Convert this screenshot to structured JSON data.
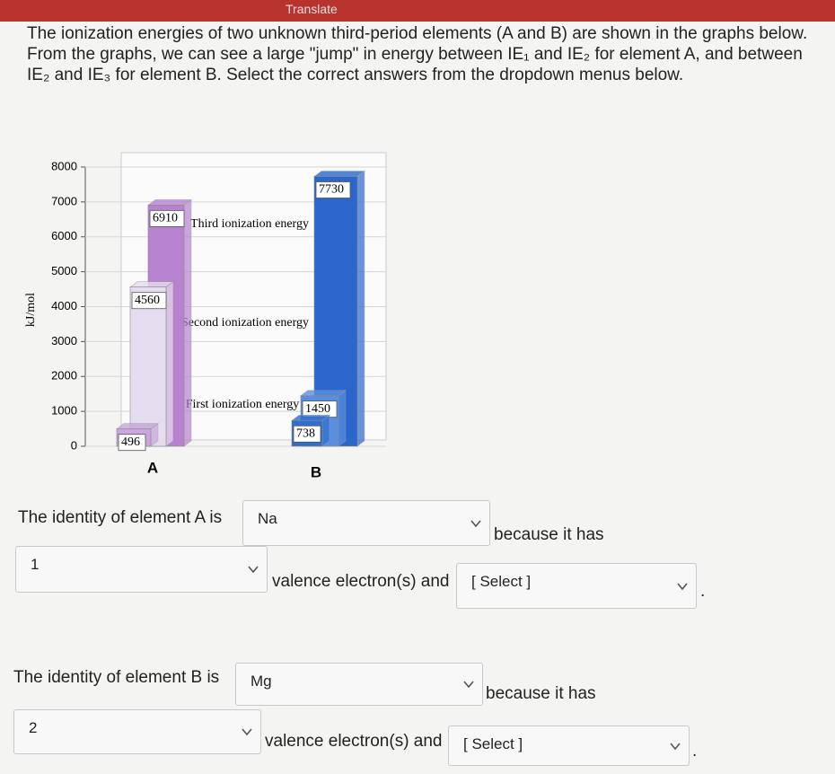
{
  "header": {
    "banner": "Translate"
  },
  "question": {
    "text": "The ionization energies of two unknown third-period elements (A and B) are shown in the graphs below. From the graphs, we can see a large \"jump\" in energy between IE₁ and IE₂ for element A, and between IE₂ and IE₃ for element B. Select the correct answers from the dropdown menus below."
  },
  "figure": {
    "y_axis_label": "kJ/mol",
    "ylim": [
      0,
      8000
    ],
    "yticks": [
      0,
      1000,
      2000,
      3000,
      4000,
      5000,
      6000,
      7000,
      8000
    ],
    "annotations": [
      "Third ionization energy",
      "Second ionization energy",
      "First ionization energy"
    ],
    "elements": [
      {
        "label": "A",
        "values": [
          496,
          4560,
          6910
        ],
        "colors": [
          "#c9a6dc",
          "#e6dcef",
          "#b782d0"
        ]
      },
      {
        "label": "B",
        "values": [
          738,
          1450,
          7730
        ],
        "colors": [
          "#2f6fd0",
          "#5a8fe0",
          "#2a66cc"
        ]
      }
    ]
  },
  "answers": [
    {
      "prefix": "The identity of element A is",
      "identity": "Na",
      "middle": "because it has",
      "count": "1",
      "suffix": "valence electron(s) and",
      "reason": "[ Select ]",
      "end": "."
    },
    {
      "prefix": "The identity of element B is",
      "identity": "Mg",
      "middle": "because it has",
      "count": "2",
      "suffix": "valence electron(s) and",
      "reason": "[ Select ]",
      "end": "."
    }
  ]
}
